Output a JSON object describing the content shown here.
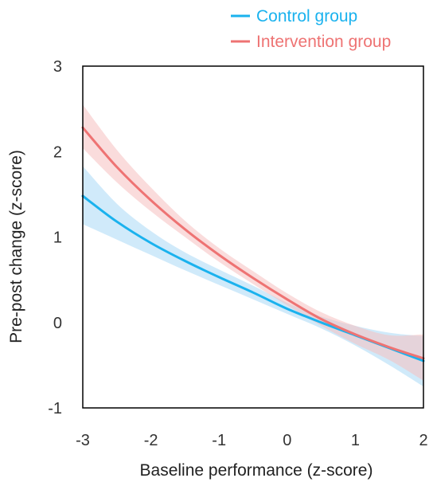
{
  "chart_data": {
    "type": "line",
    "xlabel": "Baseline performance (z-score)",
    "ylabel": "Pre-post change (z-score)",
    "xlim": [
      -3,
      2
    ],
    "ylim": [
      -1,
      3
    ],
    "x_ticks": [
      "-3",
      "-2",
      "-1",
      "0",
      "1",
      "2"
    ],
    "y_ticks": [
      "-1",
      "0",
      "1",
      "2",
      "3"
    ],
    "grid": false,
    "legend_position": "top-right",
    "x": [
      -3,
      -2.5,
      -2,
      -1.5,
      -1,
      -0.5,
      0,
      0.5,
      1,
      1.5,
      2
    ],
    "series": [
      {
        "name": "Control group",
        "color": "#1ab2ee",
        "band_color": "#a9d8f5",
        "values": [
          1.48,
          1.18,
          0.93,
          0.72,
          0.53,
          0.35,
          0.16,
          0.0,
          -0.15,
          -0.3,
          -0.45
        ],
        "lower": [
          1.15,
          0.97,
          0.79,
          0.61,
          0.44,
          0.27,
          0.1,
          -0.07,
          -0.27,
          -0.5,
          -0.75
        ],
        "upper": [
          1.83,
          1.39,
          1.07,
          0.82,
          0.62,
          0.43,
          0.23,
          0.07,
          -0.04,
          -0.12,
          -0.16
        ]
      },
      {
        "name": "Intervention group",
        "color": "#ee7373",
        "band_color": "#f6c0c0",
        "values": [
          2.28,
          1.82,
          1.43,
          1.09,
          0.79,
          0.52,
          0.27,
          0.04,
          -0.14,
          -0.29,
          -0.42
        ],
        "lower": [
          2.04,
          1.64,
          1.3,
          1.0,
          0.71,
          0.45,
          0.2,
          -0.04,
          -0.25,
          -0.44,
          -0.68
        ],
        "upper": [
          2.55,
          2.02,
          1.58,
          1.19,
          0.87,
          0.6,
          0.34,
          0.12,
          -0.04,
          -0.15,
          -0.14
        ]
      }
    ]
  }
}
